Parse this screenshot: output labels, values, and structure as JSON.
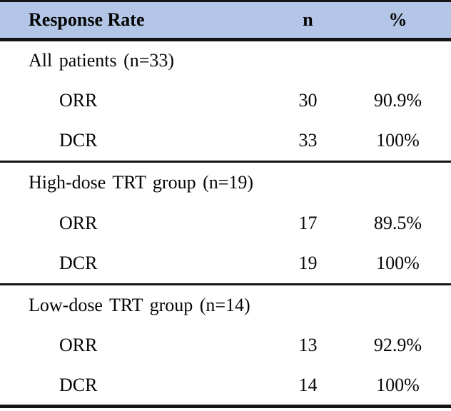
{
  "table": {
    "title": "Response Rate table",
    "colors": {
      "header_bg": "#b4c6e7",
      "border": "#141414",
      "text": "#050505"
    },
    "header": {
      "label": "Response Rate",
      "n": "n",
      "pct": "%"
    },
    "sections": [
      {
        "label": "All patients (n=33)",
        "rows": [
          {
            "label": "ORR",
            "n": "30",
            "pct": "90.9%"
          },
          {
            "label": "DCR",
            "n": "33",
            "pct": "100%"
          }
        ]
      },
      {
        "label": "High-dose TRT group (n=19)",
        "rows": [
          {
            "label": "ORR",
            "n": "17",
            "pct": "89.5%"
          },
          {
            "label": "DCR",
            "n": "19",
            "pct": "100%"
          }
        ]
      },
      {
        "label": "Low-dose TRT group (n=14)",
        "rows": [
          {
            "label": "ORR",
            "n": "13",
            "pct": "92.9%"
          },
          {
            "label": "DCR",
            "n": "14",
            "pct": "100%"
          }
        ]
      }
    ]
  },
  "chart_data": {
    "type": "table",
    "title": "Response Rate",
    "columns": [
      "Response Rate",
      "n",
      "%"
    ],
    "rows": [
      [
        "All patients (n=33)",
        "",
        ""
      ],
      [
        "ORR",
        30,
        "90.9%"
      ],
      [
        "DCR",
        33,
        "100%"
      ],
      [
        "High-dose TRT group (n=19)",
        "",
        ""
      ],
      [
        "ORR",
        17,
        "89.5%"
      ],
      [
        "DCR",
        19,
        "100%"
      ],
      [
        "Low-dose TRT group (n=14)",
        "",
        ""
      ],
      [
        "ORR",
        13,
        "92.9%"
      ],
      [
        "DCR",
        14,
        "100%"
      ]
    ]
  }
}
